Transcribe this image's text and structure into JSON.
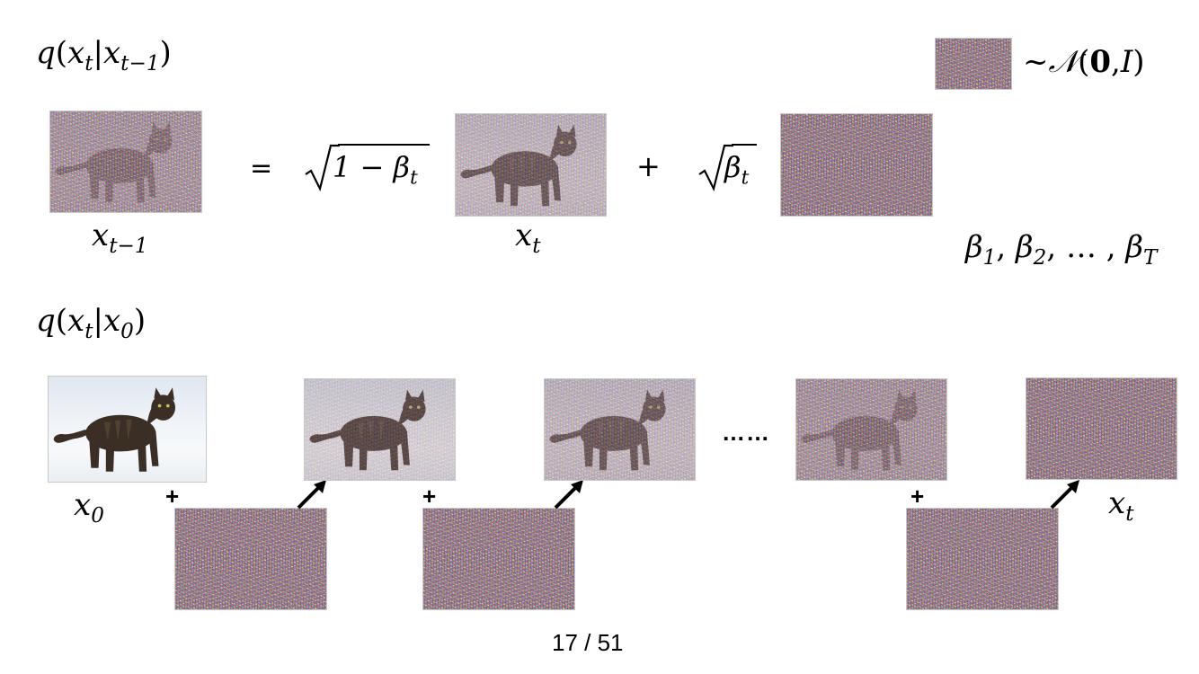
{
  "top_formula": {
    "q": "q",
    "lp": "(",
    "x": "x",
    "sub_t": "t",
    "bar": "|",
    "x2": "x",
    "sub_t1": "t−1",
    "rp": ")"
  },
  "legend": {
    "tilde": "~",
    "N": "𝒩",
    "lp": "(",
    "zero": "0",
    "comma": ",",
    "I": "I",
    "rp": ")"
  },
  "eq": {
    "equals": "=",
    "sqrt1_inner": "1 − β",
    "sqrt1_sub": "t",
    "plus": "+",
    "sqrt2_inner": "β",
    "sqrt2_sub": "t"
  },
  "labels": {
    "xt1": {
      "x": "x",
      "sub": "t−1"
    },
    "xt": {
      "x": "x",
      "sub": "t"
    },
    "x0": {
      "x": "x",
      "sub": "0"
    },
    "xt_end": {
      "x": "x",
      "sub": "t"
    }
  },
  "betas": {
    "b": "β",
    "s1": "1",
    "c1": ", ",
    "s2": "2",
    "c2": ", … , ",
    "sT": "T"
  },
  "second_formula": {
    "q": "q",
    "lp": "(",
    "x": "x",
    "sub_t": "t",
    "bar": "|",
    "x0": "x",
    "sub_0": "0",
    "rp": ")"
  },
  "chain": {
    "plus": "+",
    "dots": "……"
  },
  "page_number": "17 / 51",
  "colors": {
    "frame": "#c8c8c8",
    "arrow": "#000000"
  }
}
